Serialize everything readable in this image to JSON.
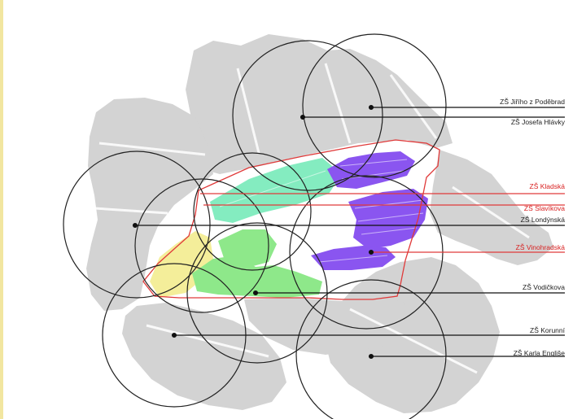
{
  "colors": {
    "background": "#ffffff",
    "left_edge_strip": "#f2e6a0",
    "base_map": "#d3d3d3",
    "boundary": "#e03a3a",
    "circle": "#222222",
    "leader": "#111111",
    "label_dark": "#222222",
    "label_red": "#d82020",
    "zone_purple": "#8a55f0",
    "zone_green": "#8ee88a",
    "zone_cyan_green": "#84ecc0",
    "zone_yellow": "#f4ee9a"
  },
  "labels": [
    {
      "text": "ZŠ Jiřího z Poděbrad",
      "color": "dark"
    },
    {
      "text": "ZŠ Josefa Hlávky",
      "color": "dark"
    },
    {
      "text": "ZŠ Kladská",
      "color": "red"
    },
    {
      "text": "ZŠ Slavíkova",
      "color": "red"
    },
    {
      "text": "ZŠ Londýnská",
      "color": "dark"
    },
    {
      "text": "ZŠ Vinohradská",
      "color": "red"
    },
    {
      "text": "ZŠ Vodičkova",
      "color": "dark"
    },
    {
      "text": "ZŠ Korunní",
      "color": "dark"
    },
    {
      "text": "ZŠ Karla Engliše",
      "color": "dark"
    }
  ]
}
